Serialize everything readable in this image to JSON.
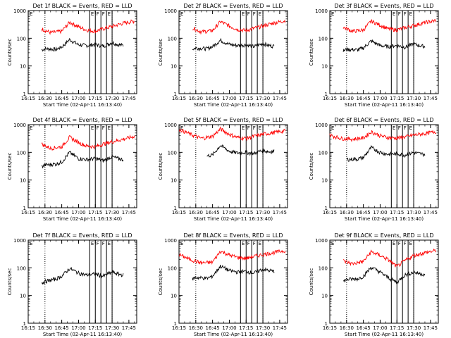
{
  "chart_data": [
    {
      "type": "line",
      "title": "Det 1f BLACK = Events, RED = LLD",
      "xlabel": "Start Time (02-Apr-11 16:13:40)",
      "ylabel": "Counts/sec",
      "x_ticks": [
        "16:15",
        "16:30",
        "16:45",
        "17:00",
        "17:15",
        "17:30",
        "17:45"
      ],
      "y_ticks": [
        "1",
        "10",
        "100",
        "1000"
      ],
      "ylim": [
        1,
        1000
      ],
      "y_scale": "log",
      "dotted_lines": [
        "16:30",
        "17:30"
      ],
      "flag_lines": [
        "17:10",
        "17:15",
        "17:20",
        "17:25",
        "17:30"
      ],
      "flag_labels": [
        "E",
        "F",
        "F",
        "E"
      ],
      "series": [
        {
          "name": "BLACK = Events",
          "color": "#000000",
          "x": [
            "16:27",
            "16:30",
            "16:40",
            "16:45",
            "16:52",
            "17:00",
            "17:07",
            "17:15",
            "17:22",
            "17:30",
            "17:35",
            "17:40"
          ],
          "y": [
            38,
            42,
            40,
            48,
            90,
            58,
            55,
            60,
            52,
            70,
            60,
            55
          ]
        },
        {
          "name": "RED = LLD",
          "color": "#ff0000",
          "x": [
            "16:27",
            "16:35",
            "16:45",
            "16:52",
            "17:00",
            "17:07",
            "17:15",
            "17:22",
            "17:30",
            "17:40",
            "17:50"
          ],
          "y": [
            220,
            160,
            180,
            380,
            260,
            200,
            180,
            220,
            270,
            350,
            420
          ]
        }
      ]
    },
    {
      "type": "line",
      "title": "Det 2f BLACK = Events, RED = LLD",
      "xlabel": "Start Time (02-Apr-11 16:13:40)",
      "ylabel": "Counts/sec",
      "x_ticks": [
        "16:15",
        "16:30",
        "16:45",
        "17:00",
        "17:15",
        "17:30",
        "17:45"
      ],
      "y_ticks": [
        "1",
        "10",
        "100",
        "1000"
      ],
      "ylim": [
        1,
        1000
      ],
      "y_scale": "log",
      "dotted_lines": [
        "16:30",
        "17:30"
      ],
      "flag_lines": [
        "17:10",
        "17:15",
        "17:20",
        "17:25",
        "17:30"
      ],
      "flag_labels": [
        "E",
        "F",
        "F",
        "E"
      ],
      "series": [
        {
          "name": "BLACK = Events",
          "color": "#000000",
          "x": [
            "16:27",
            "16:30",
            "16:40",
            "16:45",
            "16:52",
            "17:00",
            "17:07",
            "17:15",
            "17:22",
            "17:30",
            "17:35",
            "17:40"
          ],
          "y": [
            40,
            45,
            42,
            50,
            85,
            60,
            55,
            58,
            50,
            65,
            55,
            52
          ]
        },
        {
          "name": "RED = LLD",
          "color": "#ff0000",
          "x": [
            "16:27",
            "16:35",
            "16:45",
            "16:52",
            "17:00",
            "17:07",
            "17:15",
            "17:22",
            "17:30",
            "17:40",
            "17:50"
          ],
          "y": [
            240,
            170,
            190,
            400,
            280,
            210,
            190,
            230,
            280,
            360,
            430
          ]
        }
      ]
    },
    {
      "type": "line",
      "title": "Det 3f BLACK = Events, RED = LLD",
      "xlabel": "Start Time (02-Apr-11 16:13:40)",
      "ylabel": "Counts/sec",
      "x_ticks": [
        "16:15",
        "16:30",
        "16:45",
        "17:00",
        "17:15",
        "17:30",
        "17:45"
      ],
      "y_ticks": [
        "1",
        "10",
        "100",
        "1000"
      ],
      "ylim": [
        1,
        1000
      ],
      "y_scale": "log",
      "dotted_lines": [
        "16:30",
        "17:30"
      ],
      "flag_lines": [
        "17:10",
        "17:15",
        "17:20",
        "17:25",
        "17:30"
      ],
      "flag_labels": [
        "E",
        "F",
        "F",
        "E"
      ],
      "series": [
        {
          "name": "BLACK = Events",
          "color": "#000000",
          "x": [
            "16:27",
            "16:30",
            "16:40",
            "16:45",
            "16:52",
            "17:00",
            "17:07",
            "17:15",
            "17:22",
            "17:30",
            "17:35",
            "17:40"
          ],
          "y": [
            35,
            40,
            38,
            45,
            80,
            55,
            50,
            55,
            48,
            62,
            55,
            50
          ]
        },
        {
          "name": "RED = LLD",
          "color": "#ff0000",
          "x": [
            "16:27",
            "16:35",
            "16:45",
            "16:52",
            "17:00",
            "17:07",
            "17:15",
            "17:22",
            "17:30",
            "17:40",
            "17:50"
          ],
          "y": [
            250,
            180,
            200,
            420,
            300,
            220,
            200,
            240,
            290,
            370,
            440
          ]
        }
      ]
    },
    {
      "type": "line",
      "title": "Det 4f BLACK = Events, RED = LLD",
      "xlabel": "Start Time (02-Apr-11 16:13:40)",
      "ylabel": "Counts/sec",
      "x_ticks": [
        "16:15",
        "16:30",
        "16:45",
        "17:00",
        "17:15",
        "17:30",
        "17:45"
      ],
      "y_ticks": [
        "1",
        "10",
        "100",
        "1000"
      ],
      "ylim": [
        1,
        1000
      ],
      "y_scale": "log",
      "dotted_lines": [
        "16:30",
        "17:30"
      ],
      "flag_lines": [
        "17:10",
        "17:15",
        "17:20",
        "17:25",
        "17:30"
      ],
      "flag_labels": [
        "E",
        "F",
        "F",
        "E"
      ],
      "series": [
        {
          "name": "BLACK = Events",
          "color": "#000000",
          "x": [
            "16:27",
            "16:30",
            "16:40",
            "16:45",
            "16:52",
            "17:00",
            "17:07",
            "17:15",
            "17:22",
            "17:30",
            "17:35",
            "17:40"
          ],
          "y": [
            30,
            35,
            38,
            45,
            100,
            60,
            55,
            60,
            50,
            70,
            60,
            55
          ]
        },
        {
          "name": "RED = LLD",
          "color": "#ff0000",
          "x": [
            "16:27",
            "16:35",
            "16:45",
            "16:52",
            "17:00",
            "17:07",
            "17:15",
            "17:22",
            "17:30",
            "17:40",
            "17:50"
          ],
          "y": [
            200,
            140,
            160,
            350,
            230,
            170,
            160,
            200,
            240,
            300,
            380
          ]
        }
      ]
    },
    {
      "type": "line",
      "title": "Det 5f BLACK = Events, RED = LLD",
      "xlabel": "Start Time (02-Apr-11 16:13:40)",
      "ylabel": "Counts/sec",
      "x_ticks": [
        "16:15",
        "16:30",
        "16:45",
        "17:00",
        "17:15",
        "17:30",
        "17:45"
      ],
      "y_ticks": [
        "1",
        "10",
        "100",
        "1000"
      ],
      "ylim": [
        1,
        1000
      ],
      "y_scale": "log",
      "dotted_lines": [
        "16:30",
        "17:30"
      ],
      "flag_lines": [
        "17:10",
        "17:15",
        "17:20",
        "17:25",
        "17:30"
      ],
      "flag_labels": [
        "E",
        "F",
        "F",
        "E"
      ],
      "series": [
        {
          "name": "BLACK = Events",
          "color": "#000000",
          "x": [
            "16:40",
            "16:45",
            "16:52",
            "17:00",
            "17:07",
            "17:15",
            "17:22",
            "17:30",
            "17:35",
            "17:40"
          ],
          "y": [
            75,
            80,
            180,
            110,
            95,
            100,
            90,
            120,
            105,
            110
          ]
        },
        {
          "name": "RED = LLD",
          "color": "#ff0000",
          "x": [
            "16:15",
            "16:25",
            "16:35",
            "16:45",
            "16:52",
            "17:00",
            "17:07",
            "17:15",
            "17:22",
            "17:30",
            "17:40",
            "17:50"
          ],
          "y": [
            700,
            450,
            320,
            380,
            700,
            450,
            350,
            320,
            380,
            450,
            520,
            600
          ]
        }
      ]
    },
    {
      "type": "line",
      "title": "Det 6f BLACK = Events, RED = LLD",
      "xlabel": "Start Time (02-Apr-11 16:13:40)",
      "ylabel": "Counts/sec",
      "x_ticks": [
        "16:15",
        "16:30",
        "16:45",
        "17:00",
        "17:15",
        "17:30",
        "17:45"
      ],
      "y_ticks": [
        "1",
        "10",
        "100",
        "1000"
      ],
      "ylim": [
        1,
        1000
      ],
      "y_scale": "log",
      "dotted_lines": [
        "16:30",
        "17:30"
      ],
      "flag_lines": [
        "17:10",
        "17:15",
        "17:20",
        "17:25",
        "17:30"
      ],
      "flag_labels": [
        "E",
        "F",
        "F",
        "E"
      ],
      "series": [
        {
          "name": "BLACK = Events",
          "color": "#000000",
          "x": [
            "16:30",
            "16:40",
            "16:45",
            "16:52",
            "17:00",
            "17:07",
            "17:15",
            "17:22",
            "17:30",
            "17:35",
            "17:40"
          ],
          "y": [
            55,
            58,
            65,
            150,
            100,
            85,
            90,
            80,
            100,
            90,
            85
          ]
        },
        {
          "name": "RED = LLD",
          "color": "#ff0000",
          "x": [
            "16:15",
            "16:25",
            "16:35",
            "16:45",
            "16:52",
            "17:00",
            "17:07",
            "17:15",
            "17:22",
            "17:30",
            "17:40",
            "17:50"
          ],
          "y": [
            420,
            320,
            300,
            330,
            550,
            400,
            340,
            330,
            360,
            420,
            480,
            560
          ]
        }
      ]
    },
    {
      "type": "line",
      "title": "Det 7f BLACK = Events, RED = LLD",
      "xlabel": "Start Time (02-Apr-11 16:13:40)",
      "ylabel": "Counts/sec",
      "x_ticks": [
        "16:15",
        "16:30",
        "16:45",
        "17:00",
        "17:15",
        "17:30",
        "17:45"
      ],
      "y_ticks": [
        "1",
        "10",
        "100",
        "1000"
      ],
      "ylim": [
        1,
        1000
      ],
      "y_scale": "log",
      "dotted_lines": [
        "16:30",
        "17:30"
      ],
      "flag_lines": [
        "17:10",
        "17:15",
        "17:20",
        "17:25",
        "17:30"
      ],
      "flag_labels": [
        "E",
        "F",
        "F",
        "E"
      ],
      "series": [
        {
          "name": "BLACK = Events",
          "color": "#000000",
          "x": [
            "16:27",
            "16:30",
            "16:40",
            "16:45",
            "16:52",
            "17:00",
            "17:07",
            "17:15",
            "17:22",
            "17:30",
            "17:35",
            "17:40"
          ],
          "y": [
            28,
            32,
            40,
            50,
            95,
            65,
            55,
            60,
            50,
            70,
            60,
            55
          ]
        }
      ]
    },
    {
      "type": "line",
      "title": "Det 8f BLACK = Events, RED = LLD",
      "xlabel": "Start Time (02-Apr-11 16:13:40)",
      "ylabel": "Counts/sec",
      "x_ticks": [
        "16:15",
        "16:30",
        "16:45",
        "17:00",
        "17:15",
        "17:30",
        "17:45"
      ],
      "y_ticks": [
        "1",
        "10",
        "100",
        "1000"
      ],
      "ylim": [
        1,
        1000
      ],
      "y_scale": "log",
      "dotted_lines": [
        "16:30",
        "17:30"
      ],
      "flag_lines": [
        "17:10",
        "17:15",
        "17:20",
        "17:25",
        "17:30"
      ],
      "flag_labels": [
        "E",
        "F",
        "F",
        "E"
      ],
      "series": [
        {
          "name": "BLACK = Events",
          "color": "#000000",
          "x": [
            "16:27",
            "16:30",
            "16:40",
            "16:45",
            "16:52",
            "17:00",
            "17:07",
            "17:15",
            "17:22",
            "17:30",
            "17:35",
            "17:40"
          ],
          "y": [
            40,
            45,
            42,
            50,
            115,
            80,
            70,
            75,
            65,
            90,
            80,
            75
          ]
        },
        {
          "name": "RED = LLD",
          "color": "#ff0000",
          "x": [
            "16:15",
            "16:25",
            "16:35",
            "16:45",
            "16:52",
            "17:00",
            "17:07",
            "17:15",
            "17:22",
            "17:30",
            "17:40",
            "17:50"
          ],
          "y": [
            300,
            200,
            150,
            160,
            400,
            290,
            240,
            220,
            260,
            300,
            360,
            420
          ]
        }
      ]
    },
    {
      "type": "line",
      "title": "Det 9f BLACK = Events, RED = LLD",
      "xlabel": "Start Time (02-Apr-11 16:13:40)",
      "ylabel": "Counts/sec",
      "x_ticks": [
        "16:15",
        "16:30",
        "16:45",
        "17:00",
        "17:15",
        "17:30",
        "17:45"
      ],
      "y_ticks": [
        "1",
        "10",
        "100",
        "1000"
      ],
      "ylim": [
        1,
        1000
      ],
      "y_scale": "log",
      "dotted_lines": [
        "16:30",
        "17:30"
      ],
      "flag_lines": [
        "17:10",
        "17:15",
        "17:20",
        "17:25",
        "17:30"
      ],
      "flag_labels": [
        "E",
        "F",
        "F",
        "E"
      ],
      "series": [
        {
          "name": "BLACK = Events",
          "color": "#000000",
          "x": [
            "16:27",
            "16:30",
            "16:40",
            "16:45",
            "16:52",
            "17:00",
            "17:07",
            "17:15",
            "17:22",
            "17:30",
            "17:35",
            "17:40"
          ],
          "y": [
            32,
            38,
            40,
            50,
            105,
            70,
            45,
            30,
            55,
            70,
            62,
            58
          ]
        },
        {
          "name": "RED = LLD",
          "color": "#ff0000",
          "x": [
            "16:27",
            "16:35",
            "16:45",
            "16:52",
            "17:00",
            "17:07",
            "17:15",
            "17:22",
            "17:30",
            "17:40",
            "17:50"
          ],
          "y": [
            180,
            140,
            170,
            380,
            280,
            200,
            110,
            180,
            280,
            350,
            420
          ]
        }
      ]
    }
  ]
}
